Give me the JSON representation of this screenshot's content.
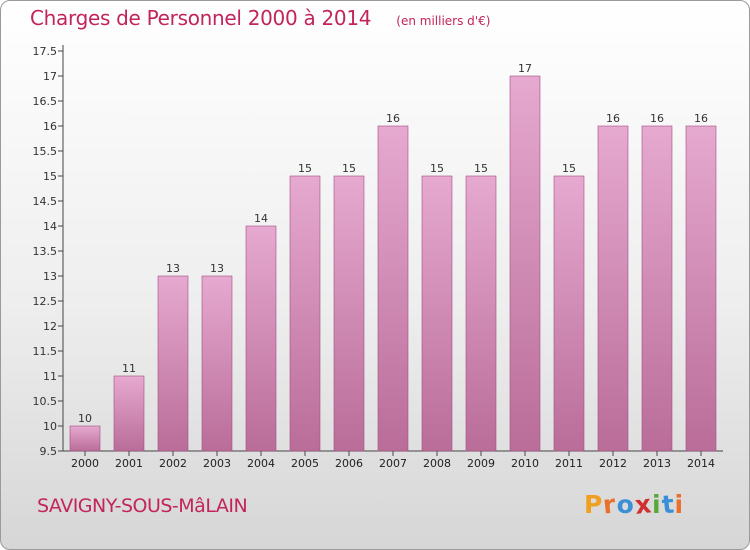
{
  "header": {
    "title": "Charges de Personnel 2000 à 2014",
    "subtitle": "(en milliers d'€)"
  },
  "footer": {
    "commune": "SAVIGNY-SOUS-MâLAIN",
    "logo_text": "Proxiti"
  },
  "colors": {
    "title": "#c2245c",
    "bar_top": "#e6a9cf",
    "bar_bottom": "#b96d98",
    "logo_letters": [
      "#f0a020",
      "#e8702a",
      "#3b8fd6",
      "#d02f2f",
      "#5aa83a",
      "#3b8fd6",
      "#e8702a"
    ]
  },
  "chart_data": {
    "type": "bar",
    "title": "Charges de Personnel 2000 à 2014",
    "subtitle": "(en milliers d'€)",
    "categories": [
      "2000",
      "2001",
      "2002",
      "2003",
      "2004",
      "2005",
      "2006",
      "2007",
      "2008",
      "2009",
      "2010",
      "2011",
      "2012",
      "2013",
      "2014"
    ],
    "values": [
      10,
      11,
      13,
      13,
      14,
      15,
      15,
      16,
      15,
      15,
      17,
      15,
      16,
      16,
      16
    ],
    "data_labels": [
      "10",
      "11",
      "13",
      "13",
      "14",
      "15",
      "15",
      "16",
      "15",
      "15",
      "17",
      "15",
      "16",
      "16",
      "16"
    ],
    "ylim": [
      9.5,
      17.5
    ],
    "yticks": [
      9.5,
      10,
      10.5,
      11,
      11.5,
      12,
      12.5,
      13,
      13.5,
      14,
      14.5,
      15,
      15.5,
      16,
      16.5,
      17,
      17.5
    ],
    "ytick_labels": [
      "9.5",
      "10",
      "10.5",
      "11",
      "11.5",
      "12",
      "12.5",
      "13",
      "13.5",
      "14",
      "14.5",
      "15",
      "15.5",
      "16",
      "16.5",
      "17",
      "17.5"
    ],
    "grid": false,
    "legend": "none"
  }
}
